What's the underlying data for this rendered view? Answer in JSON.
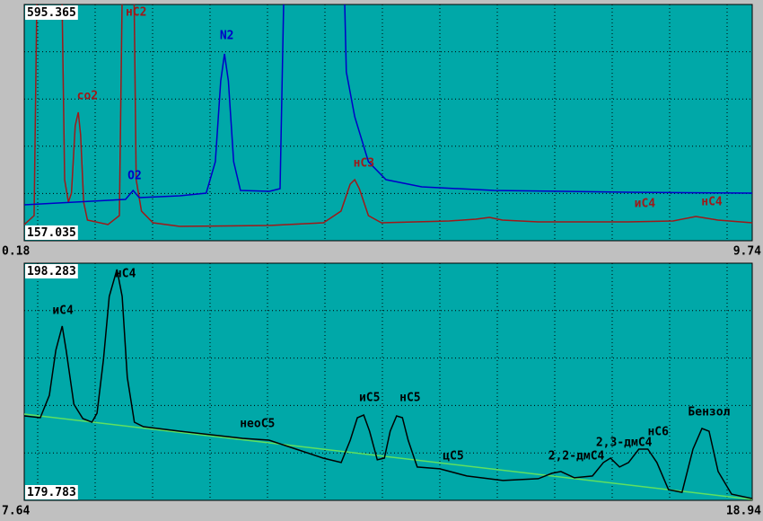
{
  "chart_data": [
    {
      "type": "line",
      "xlim": [
        0.18,
        9.74
      ],
      "ylim": [
        157.035,
        595.365
      ],
      "series": [
        {
          "color": "#a01818",
          "x": [
            0.18,
            0.31,
            0.36,
            0.66,
            0.71,
            0.76,
            0.8,
            0.85,
            0.89,
            0.92,
            0.96,
            1.01,
            1.28,
            1.43,
            1.48,
            1.61,
            1.65,
            1.72,
            1.87,
            2.22,
            3.4,
            4.11,
            4.34,
            4.46,
            4.52,
            4.58,
            4.7,
            4.87,
            5.76,
            6.11,
            6.29,
            6.46,
            6.93,
            8.11,
            8.7,
            9.0,
            9.29,
            9.74
          ],
          "values": [
            187.0,
            203.7,
            770.4,
            770.4,
            270.4,
            228.7,
            245.4,
            370.4,
            395.4,
            353.7,
            228.7,
            195.4,
            187.0,
            203.7,
            770.4,
            770.4,
            270.4,
            212.0,
            190.4,
            183.7,
            185.4,
            190.4,
            212.0,
            262.0,
            270.4,
            253.7,
            203.7,
            190.4,
            193.7,
            197.0,
            200.4,
            195.4,
            192.0,
            192.0,
            193.7,
            202.0,
            195.4,
            190.4
          ]
        },
        {
          "color": "#0000c8",
          "x": [
            0.18,
            1.51,
            1.61,
            1.69,
            2.22,
            2.57,
            2.69,
            2.76,
            2.81,
            2.86,
            2.93,
            3.02,
            3.4,
            3.54,
            3.61,
            4.36,
            4.41,
            4.52,
            4.7,
            4.93,
            5.4,
            6.35,
            8.11,
            9.74
          ],
          "values": [
            223.7,
            233.7,
            250.4,
            237.0,
            240.4,
            245.4,
            303.7,
            453.7,
            503.7,
            453.7,
            303.7,
            250.4,
            248.7,
            253.7,
            770.4,
            770.4,
            470.4,
            387.0,
            303.7,
            270.4,
            257.0,
            250.4,
            247.0,
            245.4
          ]
        }
      ],
      "annotations": [
        {
          "text": "co2",
          "x": 1.01,
          "y": 425.4,
          "color": "#a01818"
        },
        {
          "text": "нС2",
          "x": 1.65,
          "y": 580.4,
          "color": "#a01818"
        },
        {
          "text": "N2",
          "x": 2.84,
          "y": 537.0,
          "color": "#0000c8"
        },
        {
          "text": "O2",
          "x": 1.63,
          "y": 277.0,
          "color": "#0000c8"
        },
        {
          "text": "нС3",
          "x": 4.64,
          "y": 300.4,
          "color": "#a01818"
        },
        {
          "text": "иС4",
          "x": 8.33,
          "y": 225.4,
          "color": "#a01818"
        },
        {
          "text": "нС4",
          "x": 9.21,
          "y": 228.7,
          "color": "#a01818"
        }
      ]
    },
    {
      "type": "line",
      "xlim": [
        7.64,
        18.94
      ],
      "ylim": [
        179.783,
        198.283
      ],
      "series": [
        {
          "color": "#60e060",
          "x": [
            7.64,
            18.94
          ],
          "values": [
            186.51,
            179.85
          ]
        },
        {
          "color": "#000000",
          "x": [
            7.64,
            7.89,
            8.03,
            8.13,
            8.23,
            8.29,
            8.41,
            8.55,
            8.69,
            8.77,
            8.87,
            8.96,
            9.08,
            9.16,
            9.24,
            9.35,
            9.49,
            10.05,
            11.03,
            11.44,
            11.86,
            12.28,
            12.56,
            12.7,
            12.81,
            12.91,
            13.0,
            13.12,
            13.23,
            13.32,
            13.42,
            13.51,
            13.6,
            13.74,
            14.09,
            14.51,
            15.07,
            15.62,
            15.83,
            15.97,
            16.18,
            16.46,
            16.63,
            16.74,
            16.88,
            17.02,
            17.18,
            17.32,
            17.46,
            17.64,
            17.85,
            18.02,
            18.16,
            18.27,
            18.41,
            18.62,
            18.94
          ],
          "values": [
            186.37,
            186.23,
            187.98,
            191.49,
            193.38,
            191.49,
            187.28,
            186.16,
            185.88,
            186.58,
            190.79,
            195.69,
            197.79,
            195.69,
            189.38,
            185.88,
            185.53,
            185.18,
            184.62,
            184.48,
            183.78,
            183.08,
            182.73,
            184.48,
            186.23,
            186.44,
            185.18,
            182.94,
            183.08,
            185.18,
            186.37,
            186.23,
            184.48,
            182.38,
            182.24,
            181.68,
            181.33,
            181.47,
            181.89,
            182.03,
            181.54,
            181.68,
            182.73,
            183.08,
            182.38,
            182.73,
            183.78,
            183.78,
            182.73,
            180.62,
            180.41,
            183.78,
            185.39,
            185.18,
            182.03,
            180.27,
            179.92
          ]
        }
      ],
      "annotations": [
        {
          "text": "иС4",
          "x": 8.24,
          "y": 194.57,
          "color": "#000000"
        },
        {
          "text": "нС4",
          "x": 9.21,
          "y": 197.44,
          "color": "#000000"
        },
        {
          "text": "неоС5",
          "x": 11.26,
          "y": 185.74,
          "color": "#000000"
        },
        {
          "text": "иС5",
          "x": 13.0,
          "y": 187.77,
          "color": "#000000"
        },
        {
          "text": "нС5",
          "x": 13.63,
          "y": 187.77,
          "color": "#000000"
        },
        {
          "text": "цС5",
          "x": 14.3,
          "y": 183.22,
          "color": "#000000"
        },
        {
          "text": "2,2-дмС4",
          "x": 16.21,
          "y": 183.22,
          "color": "#000000"
        },
        {
          "text": "2,3-дмС4",
          "x": 16.95,
          "y": 184.27,
          "color": "#000000"
        },
        {
          "text": "нС6",
          "x": 17.48,
          "y": 185.11,
          "color": "#000000"
        },
        {
          "text": "Бензол",
          "x": 18.27,
          "y": 186.65,
          "color": "#000000"
        }
      ]
    }
  ]
}
